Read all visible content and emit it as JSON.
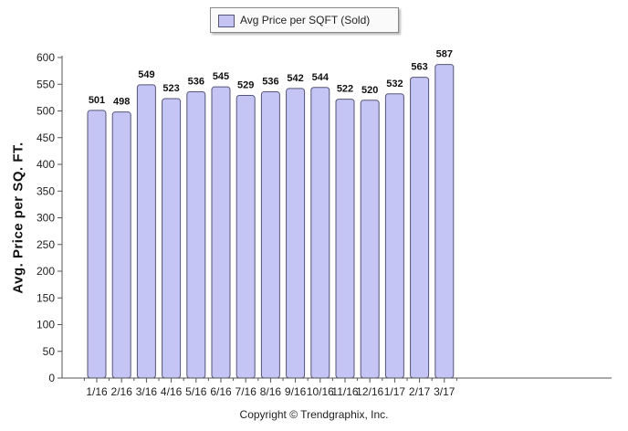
{
  "legend": {
    "label": "Avg Price per SQFT (Sold)"
  },
  "footer": {
    "copyright": "Copyright © Trendgraphix, Inc."
  },
  "colors": {
    "bar_fill": "#c4c4f5",
    "bar_stroke": "#555577",
    "axis": "#555555"
  },
  "chart_data": {
    "type": "bar",
    "title": "",
    "xlabel": "",
    "ylabel": "Avg. Price per SQ. FT.",
    "categories": [
      "1/16",
      "2/16",
      "3/16",
      "4/16",
      "5/16",
      "6/16",
      "7/16",
      "8/16",
      "9/16",
      "10/16",
      "11/16",
      "12/16",
      "1/17",
      "2/17",
      "3/17"
    ],
    "series": [
      {
        "name": "Avg Price per SQFT (Sold)",
        "values": [
          501,
          498,
          549,
          523,
          536,
          545,
          529,
          536,
          542,
          544,
          522,
          520,
          532,
          563,
          587
        ]
      }
    ],
    "ylim": [
      0,
      600
    ],
    "yticks": [
      0,
      50,
      100,
      150,
      200,
      250,
      300,
      350,
      400,
      450,
      500,
      550,
      600
    ],
    "legend_position": "top-center",
    "grid": false
  }
}
